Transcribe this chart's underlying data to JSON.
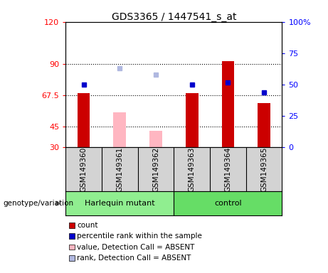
{
  "title": "GDS3365 / 1447541_s_at",
  "samples": [
    "GSM149360",
    "GSM149361",
    "GSM149362",
    "GSM149363",
    "GSM149364",
    "GSM149365"
  ],
  "left_ylim": [
    30,
    120
  ],
  "left_yticks": [
    30,
    45,
    67.5,
    90,
    120
  ],
  "right_ylim": [
    0,
    100
  ],
  "right_yticks": [
    0,
    25,
    50,
    75,
    100
  ],
  "right_yticklabels": [
    "0",
    "25",
    "50",
    "75",
    "100%"
  ],
  "hlines": [
    45,
    67.5,
    90
  ],
  "count_values": [
    69,
    null,
    null,
    69,
    92,
    62
  ],
  "rank_values": [
    50,
    null,
    null,
    50,
    52,
    44
  ],
  "absent_value_values": [
    null,
    55,
    42,
    null,
    null,
    null
  ],
  "absent_rank_values": [
    null,
    63,
    58,
    null,
    null,
    null
  ],
  "bar_width": 0.35,
  "count_color": "#CC0000",
  "rank_color": "#0000CC",
  "absent_value_color": "#FFB6C1",
  "absent_rank_color": "#B0B8E0",
  "bar_bottom": 30,
  "legend_items": [
    {
      "color": "#CC0000",
      "label": "count"
    },
    {
      "color": "#0000CC",
      "label": "percentile rank within the sample"
    },
    {
      "color": "#FFB6C1",
      "label": "value, Detection Call = ABSENT"
    },
    {
      "color": "#B0B8E0",
      "label": "rank, Detection Call = ABSENT"
    }
  ],
  "genotype_label": "genotype/variation",
  "header_bg": "#D3D3D3",
  "group1_color": "#90EE90",
  "group2_color": "#66DD66",
  "plot_bg": "#FFFFFF"
}
